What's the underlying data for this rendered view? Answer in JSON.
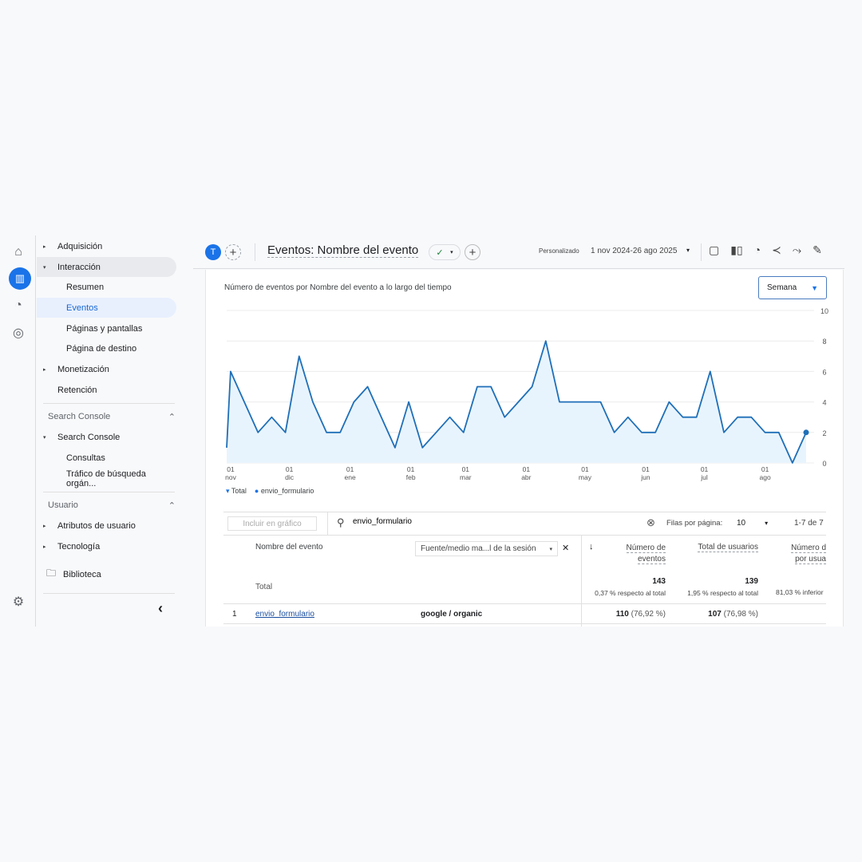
{
  "rail": {
    "items": [
      "home-icon",
      "reports-icon",
      "explore-icon",
      "advertising-icon",
      "settings-icon"
    ]
  },
  "nav": {
    "items": [
      {
        "label": "Adquisición",
        "level": 1,
        "caret": "▸"
      },
      {
        "label": "Interacción",
        "level": 1,
        "caret": "▾",
        "state": "expanded"
      },
      {
        "label": "Resumen",
        "level": 2
      },
      {
        "label": "Eventos",
        "level": 2,
        "state": "selected"
      },
      {
        "label": "Páginas y pantallas",
        "level": 2
      },
      {
        "label": "Página de destino",
        "level": 2
      },
      {
        "label": "Monetización",
        "level": 1,
        "caret": "▸"
      },
      {
        "label": "Retención",
        "level": 1
      }
    ],
    "section_sc": "Search Console",
    "sc_items": [
      {
        "label": "Search Console",
        "caret": "▾"
      },
      {
        "label": "Consultas"
      },
      {
        "label": "Tráfico de búsqueda orgán..."
      }
    ],
    "section_user": "Usuario",
    "user_items": [
      {
        "label": "Atributos de usuario",
        "caret": "▸"
      },
      {
        "label": "Tecnología",
        "caret": "▸"
      }
    ],
    "library": "Biblioteca",
    "collapse": "‹"
  },
  "header": {
    "avatar": "T",
    "title": "Eventos: Nombre del evento",
    "range_label": "Personalizado",
    "range": "1 nov 2024-26 ago 2025"
  },
  "chart_card": {
    "title": "Número de eventos por Nombre del evento a lo largo del tiempo",
    "granularity": "Semana"
  },
  "chart_data": {
    "type": "area",
    "title": "Número de eventos por Nombre del evento a lo largo del tiempo",
    "x": [
      "2024-11-01",
      "2024-11-03",
      "2024-11-10",
      "2024-11-17",
      "2024-11-24",
      "2024-12-01",
      "2024-12-08",
      "2024-12-15",
      "2024-12-22",
      "2024-12-29",
      "2025-01-05",
      "2025-01-12",
      "2025-01-19",
      "2025-01-26",
      "2025-02-02",
      "2025-02-09",
      "2025-02-16",
      "2025-02-23",
      "2025-03-02",
      "2025-03-09",
      "2025-03-16",
      "2025-03-23",
      "2025-03-30",
      "2025-04-06",
      "2025-04-13",
      "2025-04-20",
      "2025-04-27",
      "2025-05-04",
      "2025-05-11",
      "2025-05-18",
      "2025-05-25",
      "2025-06-01",
      "2025-06-08",
      "2025-06-15",
      "2025-06-22",
      "2025-06-29",
      "2025-07-06",
      "2025-07-13",
      "2025-07-20",
      "2025-07-27",
      "2025-08-03",
      "2025-08-10",
      "2025-08-17",
      "2025-08-24"
    ],
    "series": [
      {
        "name": "Total",
        "values": [
          1,
          6,
          4,
          2,
          3,
          2,
          7,
          4,
          2,
          2,
          4,
          5,
          3,
          1,
          4,
          1,
          2,
          3,
          2,
          5,
          5,
          3,
          4,
          5,
          8,
          4,
          4,
          4,
          4,
          2,
          3,
          2,
          2,
          4,
          3,
          3,
          6,
          2,
          3,
          3,
          2,
          2,
          0,
          2
        ]
      }
    ],
    "legend": [
      "Total",
      "envio_formulario"
    ],
    "x_ticks": [
      {
        "date": "2024-11-01",
        "d": "01",
        "m": "nov"
      },
      {
        "date": "2024-12-01",
        "d": "01",
        "m": "dic"
      },
      {
        "date": "2025-01-01",
        "d": "01",
        "m": "ene"
      },
      {
        "date": "2025-02-01",
        "d": "01",
        "m": "feb"
      },
      {
        "date": "2025-03-01",
        "d": "01",
        "m": "mar"
      },
      {
        "date": "2025-04-01",
        "d": "01",
        "m": "abr"
      },
      {
        "date": "2025-05-01",
        "d": "01",
        "m": "may"
      },
      {
        "date": "2025-06-01",
        "d": "01",
        "m": "jun"
      },
      {
        "date": "2025-07-01",
        "d": "01",
        "m": "jul"
      },
      {
        "date": "2025-08-01",
        "d": "01",
        "m": "ago"
      }
    ],
    "y_ticks": [
      0,
      2,
      4,
      6,
      8,
      10
    ],
    "ylim": [
      0,
      10
    ],
    "y_axis": "right",
    "grid": true,
    "legend_position": "bottom-left",
    "line_color": "#1a73e8",
    "fill_color": "#e8f4fd"
  },
  "table": {
    "include_btn": "Incluir en gráfico",
    "search_value": "envio_formulario",
    "rows_per_page_label": "Filas por página:",
    "rows_per_page": "10",
    "pagination": "1-7 de 7",
    "col_event": "Nombre del evento",
    "col_dimension": "Fuente/medio ma...l de la sesión",
    "col_events": [
      "Número de",
      "eventos"
    ],
    "col_users": "Total de usuarios",
    "col_per_user": [
      "Número d",
      "por usua"
    ],
    "total_label": "Total",
    "total_events": "143",
    "total_events_sub": "0,37 % respecto al total",
    "total_users": "139",
    "total_users_sub": "1,95 % respecto al total",
    "total_per_user_sub": "81,03 % inferior",
    "rows": [
      {
        "idx": "1",
        "event": "envio_formulario",
        "dim": "google / organic",
        "events": "110",
        "events_pct": "(76,92 %)",
        "users": "107",
        "users_pct": "(76,98 %)"
      }
    ]
  }
}
